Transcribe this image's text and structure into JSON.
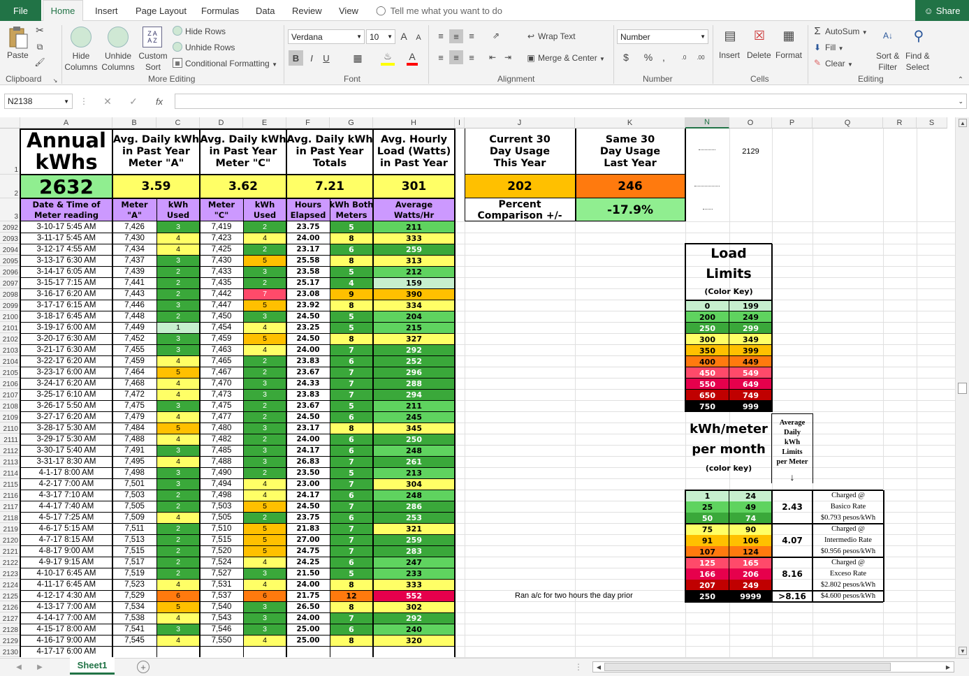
{
  "ribbon_tabs": [
    "File",
    "Home",
    "Insert",
    "Page Layout",
    "Formulas",
    "Data",
    "Review",
    "View"
  ],
  "tell_me": "Tell me what you want to do",
  "share": "Share",
  "ribbon": {
    "paste": "Paste",
    "hide_columns": [
      "Hide",
      "Columns"
    ],
    "unhide_columns": [
      "Unhide",
      "Columns"
    ],
    "custom_sort": [
      "Custom",
      "Sort"
    ],
    "hide_rows": "Hide Rows",
    "unhide_rows": "Unhide Rows",
    "cond_format": "Conditional Formatting",
    "font_name": "Verdana",
    "font_size": "10",
    "wrap_text": "Wrap Text",
    "merge_center": "Merge & Center",
    "number_format": "Number",
    "insert": "Insert",
    "delete": "Delete",
    "format": "Format",
    "autosum": "AutoSum",
    "fill": "Fill",
    "clear": "Clear",
    "sort_filter": [
      "Sort &",
      "Filter"
    ],
    "find_select": [
      "Find &",
      "Select"
    ],
    "groups": [
      "Clipboard",
      "More Editing",
      "Font",
      "Alignment",
      "Number",
      "Cells",
      "Editing"
    ]
  },
  "name_box": "N2138",
  "formula_fx": "fx",
  "columns": [
    "A",
    "B",
    "C",
    "D",
    "E",
    "F",
    "G",
    "H",
    "I",
    "J",
    "K",
    "N",
    "O",
    "P",
    "Q",
    "R",
    "S"
  ],
  "header": {
    "annual_label": [
      "Annual",
      "kWhs"
    ],
    "annual_value": "2632",
    "b1": [
      "Avg. Daily kWh",
      "in Past Year",
      "Meter \"A\""
    ],
    "b2": "3.59",
    "d1": [
      "Avg. Daily kWh",
      "in Past Year",
      "Meter \"C\""
    ],
    "d2": "3.62",
    "f1": [
      "Avg. Daily kWh",
      "in Past Year",
      "Totals"
    ],
    "f2": "7.21",
    "h1": [
      "Avg. Hourly",
      "Load (Watts)",
      "in Past Year"
    ],
    "h2": "301",
    "j1": [
      "Current 30",
      "Day Usage",
      "This Year"
    ],
    "j2": "202",
    "k1": [
      "Same 30",
      "Day Usage",
      "Last Year"
    ],
    "k2": "246",
    "j3": [
      "Percent",
      "Comparison +/-"
    ],
    "k3": "-17.9%",
    "n1": "2129",
    "col_headers": [
      [
        "Date & Time of",
        "Meter reading"
      ],
      [
        "Meter",
        "\"A\""
      ],
      [
        "kWh",
        "Used"
      ],
      [
        "Meter",
        "\"C\""
      ],
      [
        "kWh",
        "Used"
      ],
      [
        "Hours",
        "Elapsed"
      ],
      [
        "kWh Both",
        "Meters"
      ],
      [
        "Average",
        "Watts/Hr"
      ]
    ]
  },
  "rows": [
    [
      "2092",
      "3-10-17 5:45 AM",
      "7,426",
      "3",
      "7,419",
      "2",
      "23.75",
      "5",
      "211"
    ],
    [
      "2093",
      "3-11-17 5:45 AM",
      "7,430",
      "4",
      "7,423",
      "4",
      "24.00",
      "8",
      "333"
    ],
    [
      "2094",
      "3-12-17 4:55 AM",
      "7,434",
      "4",
      "7,425",
      "2",
      "23.17",
      "6",
      "259"
    ],
    [
      "2095",
      "3-13-17 6:30 AM",
      "7,437",
      "3",
      "7,430",
      "5",
      "25.58",
      "8",
      "313"
    ],
    [
      "2096",
      "3-14-17 6:05 AM",
      "7,439",
      "2",
      "7,433",
      "3",
      "23.58",
      "5",
      "212"
    ],
    [
      "2097",
      "3-15-17 7:15 AM",
      "7,441",
      "2",
      "7,435",
      "2",
      "25.17",
      "4",
      "159"
    ],
    [
      "2098",
      "3-16-17 6:20 AM",
      "7,443",
      "2",
      "7,442",
      "7",
      "23.08",
      "9",
      "390"
    ],
    [
      "2099",
      "3-17-17 6:15 AM",
      "7,446",
      "3",
      "7,447",
      "5",
      "23.92",
      "8",
      "334"
    ],
    [
      "2100",
      "3-18-17 6:45 AM",
      "7,448",
      "2",
      "7,450",
      "3",
      "24.50",
      "5",
      "204"
    ],
    [
      "2101",
      "3-19-17 6:00 AM",
      "7,449",
      "1",
      "7,454",
      "4",
      "23.25",
      "5",
      "215"
    ],
    [
      "2102",
      "3-20-17 6:30 AM",
      "7,452",
      "3",
      "7,459",
      "5",
      "24.50",
      "8",
      "327"
    ],
    [
      "2103",
      "3-21-17 6:30 AM",
      "7,455",
      "3",
      "7,463",
      "4",
      "24.00",
      "7",
      "292"
    ],
    [
      "2104",
      "3-22-17 6:20 AM",
      "7,459",
      "4",
      "7,465",
      "2",
      "23.83",
      "6",
      "252"
    ],
    [
      "2105",
      "3-23-17 6:00 AM",
      "7,464",
      "5",
      "7,467",
      "2",
      "23.67",
      "7",
      "296"
    ],
    [
      "2106",
      "3-24-17 6:20 AM",
      "7,468",
      "4",
      "7,470",
      "3",
      "24.33",
      "7",
      "288"
    ],
    [
      "2107",
      "3-25-17 6:10 AM",
      "7,472",
      "4",
      "7,473",
      "3",
      "23.83",
      "7",
      "294"
    ],
    [
      "2108",
      "3-26-17 5:50 AM",
      "7,475",
      "3",
      "7,475",
      "2",
      "23.67",
      "5",
      "211"
    ],
    [
      "2109",
      "3-27-17 6:20 AM",
      "7,479",
      "4",
      "7,477",
      "2",
      "24.50",
      "6",
      "245"
    ],
    [
      "2110",
      "3-28-17 5:30 AM",
      "7,484",
      "5",
      "7,480",
      "3",
      "23.17",
      "8",
      "345"
    ],
    [
      "2111",
      "3-29-17 5:30 AM",
      "7,488",
      "4",
      "7,482",
      "2",
      "24.00",
      "6",
      "250"
    ],
    [
      "2112",
      "3-30-17 5:40 AM",
      "7,491",
      "3",
      "7,485",
      "3",
      "24.17",
      "6",
      "248"
    ],
    [
      "2113",
      "3-31-17 8:30 AM",
      "7,495",
      "4",
      "7,488",
      "3",
      "26.83",
      "7",
      "261"
    ],
    [
      "2114",
      "4-1-17 8:00 AM",
      "7,498",
      "3",
      "7,490",
      "2",
      "23.50",
      "5",
      "213"
    ],
    [
      "2115",
      "4-2-17 7:00 AM",
      "7,501",
      "3",
      "7,494",
      "4",
      "23.00",
      "7",
      "304"
    ],
    [
      "2116",
      "4-3-17 7:10 AM",
      "7,503",
      "2",
      "7,498",
      "4",
      "24.17",
      "6",
      "248"
    ],
    [
      "2117",
      "4-4-17 7:40 AM",
      "7,505",
      "2",
      "7,503",
      "5",
      "24.50",
      "7",
      "286"
    ],
    [
      "2118",
      "4-5-17 7:25 AM",
      "7,509",
      "4",
      "7,505",
      "2",
      "23.75",
      "6",
      "253"
    ],
    [
      "2119",
      "4-6-17 5:15 AM",
      "7,511",
      "2",
      "7,510",
      "5",
      "21.83",
      "7",
      "321"
    ],
    [
      "2120",
      "4-7-17 8:15 AM",
      "7,513",
      "2",
      "7,515",
      "5",
      "27.00",
      "7",
      "259"
    ],
    [
      "2121",
      "4-8-17 9:00 AM",
      "7,515",
      "2",
      "7,520",
      "5",
      "24.75",
      "7",
      "283"
    ],
    [
      "2122",
      "4-9-17 9:15 AM",
      "7,517",
      "2",
      "7,524",
      "4",
      "24.25",
      "6",
      "247"
    ],
    [
      "2123",
      "4-10-17 6:45 AM",
      "7,519",
      "2",
      "7,527",
      "3",
      "21.50",
      "5",
      "233"
    ],
    [
      "2124",
      "4-11-17 6:45 AM",
      "7,523",
      "4",
      "7,531",
      "4",
      "24.00",
      "8",
      "333"
    ],
    [
      "2125",
      "4-12-17 4:30 AM",
      "7,529",
      "6",
      "7,537",
      "6",
      "21.75",
      "12",
      "552"
    ],
    [
      "2126",
      "4-13-17 7:00 AM",
      "7,534",
      "5",
      "7,540",
      "3",
      "26.50",
      "8",
      "302"
    ],
    [
      "2127",
      "4-14-17 7:00 AM",
      "7,538",
      "4",
      "7,543",
      "3",
      "24.00",
      "7",
      "292"
    ],
    [
      "2128",
      "4-15-17 8:00 AM",
      "7,541",
      "3",
      "7,546",
      "3",
      "25.00",
      "6",
      "240"
    ],
    [
      "2129",
      "4-16-17 9:00 AM",
      "7,545",
      "4",
      "7,550",
      "4",
      "25.00",
      "8",
      "320"
    ],
    [
      "2130",
      "4-17-17 6:00 AM",
      "",
      "",
      "",
      "",
      "",
      "",
      ""
    ]
  ],
  "note_2125": "Ran a/c for two hours the day prior",
  "load_limits": {
    "title": [
      "Load",
      "Limits"
    ],
    "subtitle": "(Color Key)",
    "ranges": [
      [
        "0",
        "199"
      ],
      [
        "200",
        "249"
      ],
      [
        "250",
        "299"
      ],
      [
        "300",
        "349"
      ],
      [
        "350",
        "399"
      ],
      [
        "400",
        "449"
      ],
      [
        "450",
        "549"
      ],
      [
        "550",
        "649"
      ],
      [
        "650",
        "749"
      ],
      [
        "750",
        "999"
      ]
    ],
    "colors": [
      "#c6efce",
      "#5fd35f",
      "#3aa83a",
      "#ffff66",
      "#ffc000",
      "#ff7a0e",
      "#ff4a6a",
      "#e6004c",
      "#c00000",
      "#000000"
    ]
  },
  "kwh_key": {
    "title": [
      "kWh/meter",
      "per month"
    ],
    "subtitle": "(color key)",
    "avg_header": [
      "Average",
      "Daily",
      "kWh",
      "Limits",
      "per Meter"
    ],
    "arrow": "↓",
    "ranges": [
      [
        "1",
        "24"
      ],
      [
        "25",
        "49"
      ],
      [
        "50",
        "74"
      ],
      [
        "75",
        "90"
      ],
      [
        "91",
        "106"
      ],
      [
        "107",
        "124"
      ],
      [
        "125",
        "165"
      ],
      [
        "166",
        "206"
      ],
      [
        "207",
        "249"
      ],
      [
        "250",
        "9999"
      ]
    ],
    "colors": [
      "#c6efce",
      "#5fd35f",
      "#3aa83a",
      "#ffff66",
      "#ffc000",
      "#ff7a0e",
      "#ff4a6a",
      "#e6004c",
      "#c00000",
      "#000000"
    ],
    "limits": [
      "2.43",
      "4.07",
      "8.16",
      ">8.16"
    ],
    "rates": [
      [
        "Charged @",
        "Basico Rate",
        "$0.793 pesos/kWh"
      ],
      [
        "Charged @",
        "Intermedio Rate",
        "$0.956 pesos/kWh"
      ],
      [
        "Charged @",
        "Exceso Rate",
        "$2.802 pesos/kWh"
      ],
      [
        "$4.600 pesos/kWh"
      ]
    ]
  },
  "sheet_tab": "Sheet1"
}
